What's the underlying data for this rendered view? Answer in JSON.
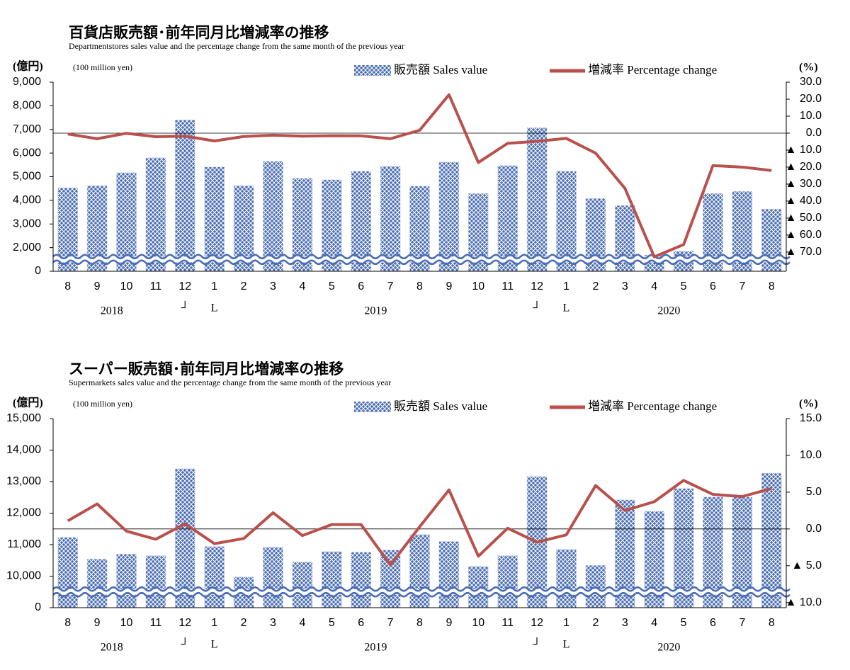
{
  "chart_data": [
    {
      "type": "combo",
      "title": "百貨店販売額･前年同月比増減率の推移",
      "subtitle": "Departmentstores sales value and the percentage change from the same month of the previous year",
      "y_label": "(億円)",
      "y_unit": "(100 million yen)",
      "y2_label": "(%)",
      "categories": [
        "8",
        "9",
        "10",
        "11",
        "12",
        "1",
        "2",
        "3",
        "4",
        "5",
        "6",
        "7",
        "8",
        "9",
        "10",
        "11",
        "12",
        "1",
        "2",
        "3",
        "4",
        "5",
        "6",
        "7",
        "8"
      ],
      "years": [
        "2018",
        "2019",
        "2020"
      ],
      "year_marks": [
        "┘",
        "L",
        "┘",
        "L"
      ],
      "axis_break": true,
      "ylim": [
        0,
        9000
      ],
      "yticks": [
        0,
        {
          "value": 2000,
          "label": "2,000"
        },
        {
          "value": 3000,
          "label": "3,000"
        },
        {
          "value": 4000,
          "label": "4,000"
        },
        {
          "value": 5000,
          "label": "5,000"
        },
        {
          "value": 6000,
          "label": "6,000"
        },
        {
          "value": 7000,
          "label": "7,000"
        },
        {
          "value": 8000,
          "label": "8,000"
        },
        {
          "value": 9000,
          "label": "9,000"
        }
      ],
      "y2lim": [
        -81.3,
        30
      ],
      "y2ticks": [
        {
          "value": 30,
          "label": "30.0"
        },
        {
          "value": 20,
          "label": "20.0"
        },
        {
          "value": 10,
          "label": "10.0"
        },
        {
          "value": 0,
          "label": "0.0"
        },
        {
          "value": -10,
          "label": "▲ 10.0"
        },
        {
          "value": -20,
          "label": "▲ 20.0"
        },
        {
          "value": -30,
          "label": "▲ 30.0"
        },
        {
          "value": -40,
          "label": "▲ 40.0"
        },
        {
          "value": -50,
          "label": "▲ 50.0"
        },
        {
          "value": -60,
          "label": "▲ 60.0"
        },
        {
          "value": -70,
          "label": "▲ 70.0"
        }
      ],
      "series": [
        {
          "name": "販売額 Sales value",
          "kind": "bar",
          "color": "#4a6db3",
          "values": [
            4530,
            4620,
            5170,
            5800,
            7400,
            5410,
            4620,
            5650,
            4930,
            4870,
            5230,
            5440,
            4600,
            5620,
            4290,
            5470,
            7070,
            5230,
            4080,
            3780,
            1370,
            1700,
            4290,
            4380,
            3630
          ]
        },
        {
          "name": "増減率 Percentage change",
          "kind": "line",
          "axis": "y2",
          "color": "#b9504b",
          "values": [
            -0.5,
            -3.3,
            -0.1,
            -2.1,
            -1.8,
            -4.6,
            -2.0,
            -1.2,
            -1.8,
            -1.5,
            -1.6,
            -3.3,
            1.7,
            22.6,
            -17.3,
            -6.0,
            -4.8,
            -3.1,
            -11.8,
            -32.5,
            -72.8,
            -65.6,
            -19.1,
            -20.0,
            -22.0
          ]
        }
      ]
    },
    {
      "type": "combo",
      "title": "スーパー販売額･前年同月比増減率の推移",
      "subtitle": "Supermarkets sales value and the percentage change from the same month of the previous year",
      "y_label": "(億円)",
      "y_unit": "(100 million yen)",
      "y2_label": "(%)",
      "categories": [
        "8",
        "9",
        "10",
        "11",
        "12",
        "1",
        "2",
        "3",
        "4",
        "5",
        "6",
        "7",
        "8",
        "9",
        "10",
        "11",
        "12",
        "1",
        "2",
        "3",
        "4",
        "5",
        "6",
        "7",
        "8"
      ],
      "years": [
        "2018",
        "2019",
        "2020"
      ],
      "year_marks": [
        "┘",
        "L",
        "┘",
        "L"
      ],
      "axis_break": true,
      "ylim": [
        0,
        15000
      ],
      "yticks": [
        0,
        {
          "value": 10000,
          "label": "10,000"
        },
        {
          "value": 11000,
          "label": "11,000"
        },
        {
          "value": 12000,
          "label": "12,000"
        },
        {
          "value": 13000,
          "label": "13,000"
        },
        {
          "value": 14000,
          "label": "14,000"
        },
        {
          "value": 15000,
          "label": "15,000"
        }
      ],
      "y2lim": [
        -10.7,
        15
      ],
      "y2ticks": [
        {
          "value": 15,
          "label": "15.0"
        },
        {
          "value": 10,
          "label": "10.0"
        },
        {
          "value": 5,
          "label": "5.0"
        },
        {
          "value": 0,
          "label": "0.0"
        },
        {
          "value": -5,
          "label": "▲ 5.0"
        },
        {
          "value": -10,
          "label": "▲ 10.0"
        }
      ],
      "series": [
        {
          "name": "販売額 Sales value",
          "kind": "bar",
          "color": "#4a6db3",
          "values": [
            11230,
            10540,
            10700,
            10650,
            13410,
            10940,
            9750,
            10920,
            10450,
            10780,
            10760,
            10830,
            11320,
            11100,
            10310,
            10650,
            13160,
            10850,
            10340,
            12420,
            12060,
            12780,
            12510,
            12510,
            13270
          ]
        },
        {
          "name": "増減率 Percentage change",
          "kind": "line",
          "axis": "y2",
          "color": "#b9504b",
          "values": [
            1.1,
            3.4,
            -0.3,
            -1.4,
            0.7,
            -2.0,
            -1.3,
            2.2,
            -0.9,
            0.6,
            0.6,
            -4.9,
            0.3,
            5.3,
            -3.7,
            0.1,
            -1.8,
            -0.8,
            5.9,
            2.5,
            3.7,
            6.6,
            4.7,
            4.4,
            5.5
          ]
        }
      ]
    }
  ]
}
